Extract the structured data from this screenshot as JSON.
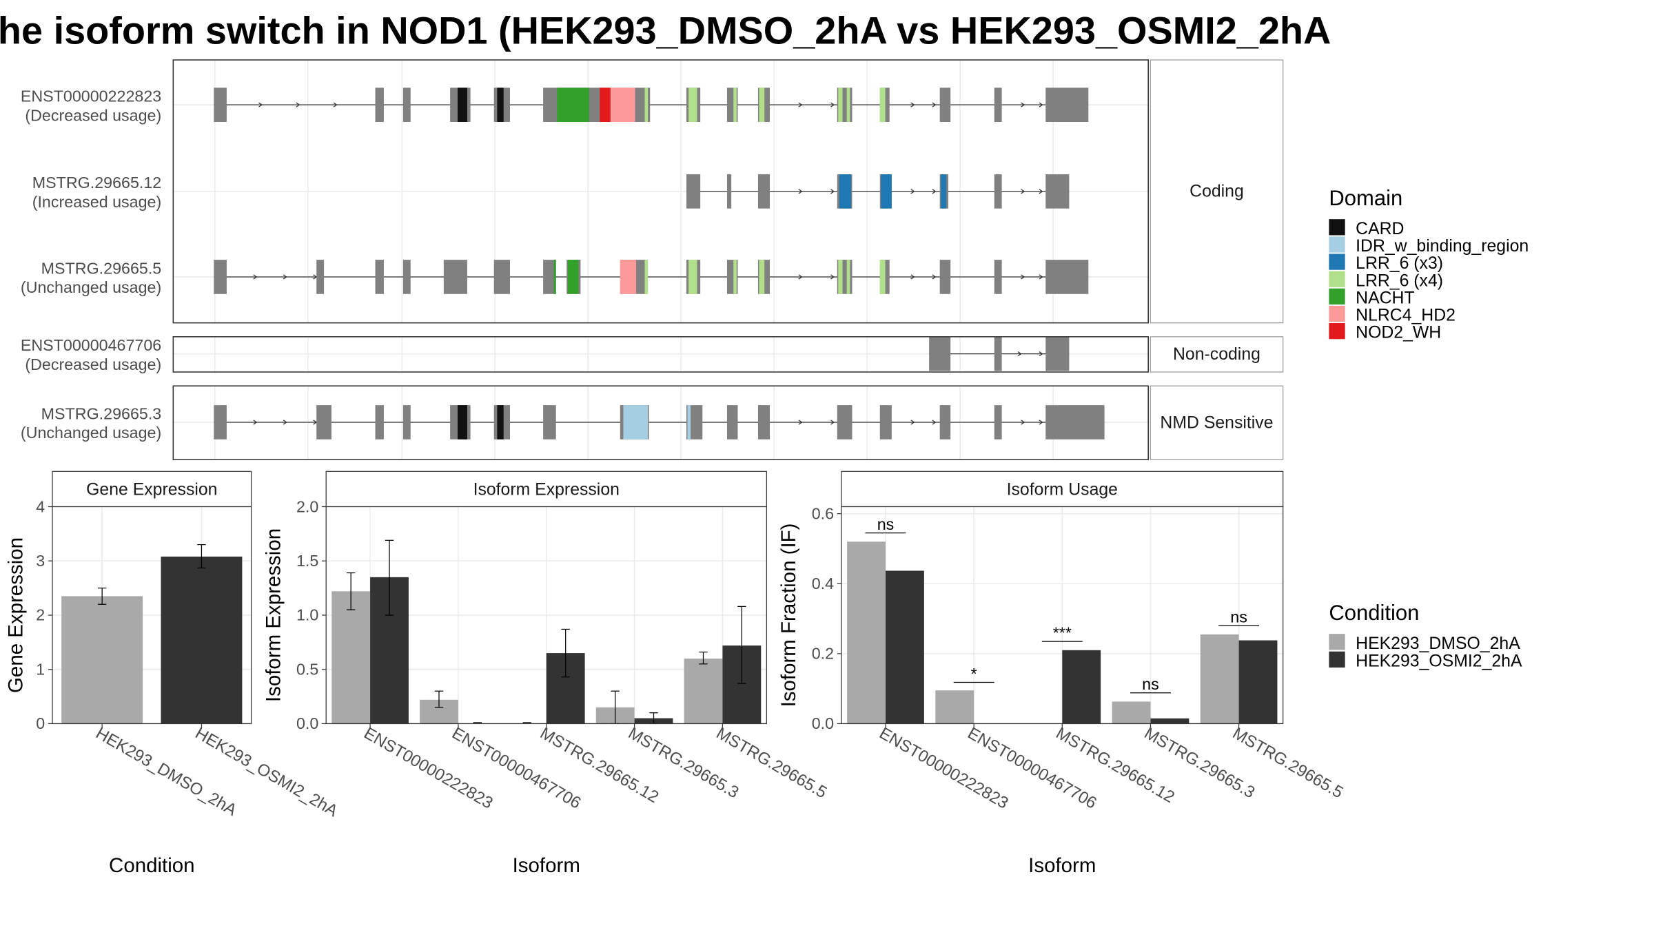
{
  "title": "he isoform switch in NOD1 (HEK293_DMSO_2hA vs HEK293_OSMI2_2hA",
  "colors": {
    "exon": "#808080",
    "CARD": "#111111",
    "IDR_w_binding_region": "#a6cee3",
    "LRR_6 (x3)": "#1f78b4",
    "LRR_6 (x4)": "#b2df8a",
    "NACHT": "#33a02c",
    "NLRC4_HD2": "#fb9a99",
    "NOD2_WH": "#e31a1c",
    "dmso": "#a9a9a9",
    "osmi": "#333333"
  },
  "structure": {
    "groups": [
      {
        "label": "Coding",
        "rows": [
          {
            "name": "ENST00000222823",
            "usage": "(Decreased usage)",
            "exons": [
              [
                200,
                212
              ],
              [
                351,
                359
              ],
              [
                377,
                384
              ],
              [
                421,
                440
              ],
              [
                462,
                477
              ],
              [
                508,
                608
              ],
              [
                642,
                655
              ],
              [
                680,
                690
              ],
              [
                709,
                720
              ],
              [
                783,
                797
              ],
              [
                823,
                832
              ],
              [
                879,
                889
              ],
              [
                930,
                937
              ],
              [
                978,
                1018
              ]
            ],
            "domains": [
              [
                428,
                437,
                "CARD"
              ],
              [
                465,
                471,
                "CARD"
              ],
              [
                521,
                551,
                "NACHT"
              ],
              [
                561,
                571,
                "NOD2_WH"
              ],
              [
                571,
                594,
                "NLRC4_HD2"
              ],
              [
                603,
                606,
                "LRR_6 (x4)"
              ],
              [
                644,
                652,
                "LRR_6 (x4)"
              ],
              [
                686,
                689,
                "LRR_6 (x4)"
              ],
              [
                710,
                715,
                "LRR_6 (x4)"
              ],
              [
                784,
                788,
                "LRR_6 (x4)"
              ],
              [
                792,
                795,
                "LRR_6 (x4)"
              ],
              [
                823,
                828,
                "LRR_6 (x4)"
              ]
            ],
            "arrows": [
              245,
              280,
              315,
              750,
              780,
              855,
              875,
              958,
              975
            ]
          },
          {
            "name": "MSTRG.29665.12",
            "usage": "(Increased usage)",
            "exons": [
              [
                642,
                655
              ],
              [
                680,
                684
              ],
              [
                709,
                720
              ],
              [
                783,
                797
              ],
              [
                823,
                834
              ],
              [
                879,
                887
              ],
              [
                930,
                937
              ],
              [
                978,
                1000
              ]
            ],
            "domains": [
              [
                785,
                796,
                "LRR_6 (x3)"
              ],
              [
                824,
                834,
                "LRR_6 (x3)"
              ],
              [
                880,
                885,
                "LRR_6 (x3)"
              ]
            ],
            "arrows": [
              750,
              780,
              855,
              875,
              958,
              975
            ]
          },
          {
            "name": "MSTRG.29665.5",
            "usage": "(Unchanged usage)",
            "exons": [
              [
                200,
                212
              ],
              [
                296,
                303
              ],
              [
                351,
                359
              ],
              [
                377,
                384
              ],
              [
                415,
                437
              ],
              [
                462,
                477
              ],
              [
                508,
                520
              ],
              [
                530,
                543
              ],
              [
                580,
                605
              ],
              [
                642,
                655
              ],
              [
                680,
                690
              ],
              [
                709,
                720
              ],
              [
                783,
                797
              ],
              [
                823,
                832
              ],
              [
                879,
                889
              ],
              [
                930,
                937
              ],
              [
                978,
                1018
              ]
            ],
            "domains": [
              [
                518,
                520,
                "NACHT"
              ],
              [
                531,
                541,
                "NACHT"
              ],
              [
                580,
                595,
                "NLRC4_HD2"
              ],
              [
                603,
                606,
                "LRR_6 (x4)"
              ],
              [
                644,
                652,
                "LRR_6 (x4)"
              ],
              [
                686,
                689,
                "LRR_6 (x4)"
              ],
              [
                710,
                715,
                "LRR_6 (x4)"
              ],
              [
                784,
                788,
                "LRR_6 (x4)"
              ],
              [
                792,
                795,
                "LRR_6 (x4)"
              ],
              [
                823,
                828,
                "LRR_6 (x4)"
              ]
            ],
            "arrows": [
              240,
              268,
              296,
              750,
              780,
              855,
              875,
              958,
              975
            ]
          }
        ]
      },
      {
        "label": "Non-coding",
        "rows": [
          {
            "name": "ENST00000467706",
            "usage": "(Decreased usage)",
            "exons": [
              [
                869,
                889
              ],
              [
                930,
                937
              ],
              [
                978,
                1000
              ]
            ],
            "domains": [],
            "arrows": [
              955,
              975
            ]
          }
        ]
      },
      {
        "label": "NMD Sensitive",
        "rows": [
          {
            "name": "MSTRG.29665.3",
            "usage": "(Unchanged usage)",
            "exons": [
              [
                200,
                212
              ],
              [
                296,
                310
              ],
              [
                351,
                359
              ],
              [
                377,
                384
              ],
              [
                421,
                440
              ],
              [
                462,
                477
              ],
              [
                508,
                520
              ],
              [
                580,
                607
              ],
              [
                642,
                657
              ],
              [
                680,
                690
              ],
              [
                709,
                720
              ],
              [
                783,
                797
              ],
              [
                823,
                834
              ],
              [
                879,
                889
              ],
              [
                930,
                937
              ],
              [
                978,
                1033
              ]
            ],
            "domains": [
              [
                428,
                437,
                "CARD"
              ],
              [
                465,
                471,
                "CARD"
              ],
              [
                583,
                606,
                "IDR_w_binding_region"
              ],
              [
                643,
                646,
                "IDR_w_binding_region"
              ]
            ],
            "arrows": [
              240,
              268,
              296,
              750,
              780,
              855,
              875,
              958,
              975
            ]
          }
        ]
      }
    ]
  },
  "legend_domain": {
    "title": "Domain",
    "items": [
      "CARD",
      "IDR_w_binding_region",
      "LRR_6 (x3)",
      "LRR_6 (x4)",
      "NACHT",
      "NLRC4_HD2",
      "NOD2_WH"
    ]
  },
  "legend_condition": {
    "title": "Condition",
    "items": [
      "HEK293_DMSO_2hA",
      "HEK293_OSMI2_2hA"
    ]
  },
  "chart_data": [
    {
      "type": "bar",
      "title": "Gene Expression",
      "xlabel": "Condition",
      "ylabel": "Gene Expression",
      "ylim": [
        0,
        4
      ],
      "yticks": [
        0,
        1,
        2,
        3,
        4
      ],
      "categories": [
        "HEK293_DMSO_2hA",
        "HEK293_OSMI2_2hA"
      ],
      "values": [
        2.35,
        3.08
      ],
      "errors": [
        [
          2.2,
          2.5
        ],
        [
          2.87,
          3.3
        ]
      ],
      "colors": [
        "dmso",
        "osmi"
      ]
    },
    {
      "type": "bar",
      "title": "Isoform Expression",
      "xlabel": "Isoform",
      "ylabel": "Isoform Expression",
      "ylim": [
        0,
        2.0
      ],
      "yticks": [
        0.0,
        0.5,
        1.0,
        1.5,
        2.0
      ],
      "ytick_labels": [
        "0.0",
        "0.5",
        "1.0",
        "1.5",
        "2.0"
      ],
      "categories": [
        "ENST00000222823",
        "ENST00000467706",
        "MSTRG.29665.12",
        "MSTRG.29665.3",
        "MSTRG.29665.5"
      ],
      "series": [
        {
          "name": "HEK293_DMSO_2hA",
          "values": [
            1.22,
            0.22,
            0.0,
            0.15,
            0.6
          ],
          "errors": [
            [
              1.05,
              1.39
            ],
            [
              0.15,
              0.3
            ],
            null,
            [
              0.0,
              0.3
            ],
            [
              0.55,
              0.66
            ]
          ]
        },
        {
          "name": "HEK293_OSMI2_2hA",
          "values": [
            1.35,
            0.0,
            0.65,
            0.05,
            0.72
          ],
          "errors": [
            [
              1.0,
              1.69
            ],
            null,
            [
              0.43,
              0.87
            ],
            [
              0.0,
              0.1
            ],
            [
              0.37,
              1.08
            ]
          ]
        }
      ]
    },
    {
      "type": "bar",
      "title": "Isoform Usage",
      "xlabel": "Isoform",
      "ylabel": "Isoform Fraction (IF)",
      "ylim": [
        0,
        0.62
      ],
      "yticks": [
        0.0,
        0.2,
        0.4,
        0.6
      ],
      "ytick_labels": [
        "0.0",
        "0.2",
        "0.4",
        "0.6"
      ],
      "categories": [
        "ENST00000222823",
        "ENST00000467706",
        "MSTRG.29665.12",
        "MSTRG.29665.3",
        "MSTRG.29665.5"
      ],
      "series": [
        {
          "name": "HEK293_DMSO_2hA",
          "values": [
            0.52,
            0.095,
            0.0,
            0.063,
            0.255
          ]
        },
        {
          "name": "HEK293_OSMI2_2hA",
          "values": [
            0.437,
            0.0,
            0.21,
            0.015,
            0.238
          ]
        }
      ],
      "significance": [
        "ns",
        "*",
        "***",
        "ns",
        "ns"
      ],
      "sig_levels": [
        0.545,
        0.118,
        0.235,
        0.088,
        0.28
      ]
    }
  ]
}
